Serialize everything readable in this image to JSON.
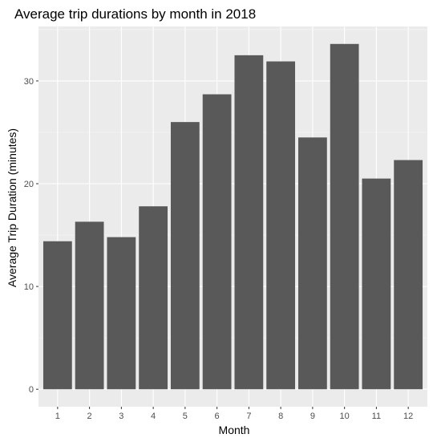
{
  "chart_data": {
    "type": "bar",
    "title": "Average trip durations by month in 2018",
    "xlabel": "Month",
    "ylabel": "Average Trip Duration (minutes)",
    "categories": [
      "1",
      "2",
      "3",
      "4",
      "5",
      "6",
      "7",
      "8",
      "9",
      "10",
      "11",
      "12"
    ],
    "values": [
      14.4,
      16.3,
      14.8,
      17.8,
      26.0,
      28.7,
      32.5,
      31.9,
      24.5,
      33.6,
      20.5,
      22.3
    ],
    "ylim": [
      -1.7,
      35.3
    ],
    "yticks": [
      0,
      10,
      20,
      30
    ],
    "grid": true,
    "legend": "none",
    "colors": {
      "bar": "#595959",
      "panel": "#ebebeb",
      "grid_major": "#ffffff",
      "grid_minor": "#f5f5f5",
      "tick_text": "#4d4d4d"
    }
  }
}
